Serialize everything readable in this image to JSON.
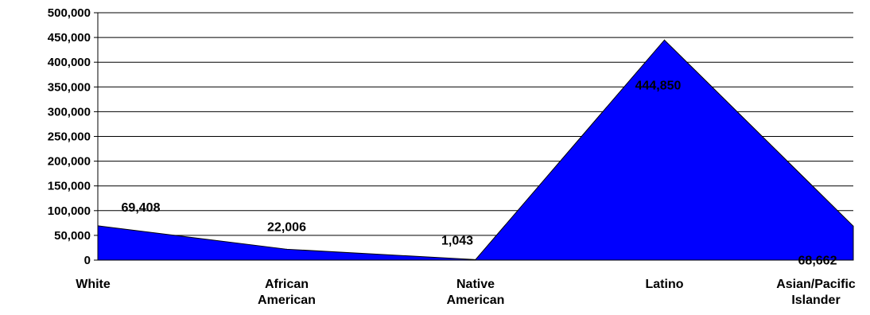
{
  "chart_data": {
    "type": "area",
    "categories": [
      "White",
      "African American",
      "Native American",
      "Latino",
      "Asian/Pacific Islander"
    ],
    "category_label_lines": [
      [
        "White"
      ],
      [
        "African",
        "American"
      ],
      [
        "Native",
        "American"
      ],
      [
        "Latino"
      ],
      [
        "Asian/Pacific",
        "Islander"
      ]
    ],
    "values": [
      69408,
      22006,
      1043,
      444850,
      68662
    ],
    "data_labels": [
      "69,408",
      "22,006",
      "1,043",
      "444,850",
      "68,662"
    ],
    "ylim": [
      0,
      500000
    ],
    "yticks": [
      0,
      50000,
      100000,
      150000,
      200000,
      250000,
      300000,
      350000,
      400000,
      450000,
      500000
    ],
    "ytick_labels": [
      "0",
      "50,000",
      "100,000",
      "150,000",
      "200,000",
      "250,000",
      "300,000",
      "350,000",
      "400,000",
      "450,000",
      "500,000"
    ],
    "grid": true,
    "fill_color": "#0000ff",
    "outline_color": "#000000",
    "title": "",
    "xlabel": "",
    "ylabel": ""
  }
}
